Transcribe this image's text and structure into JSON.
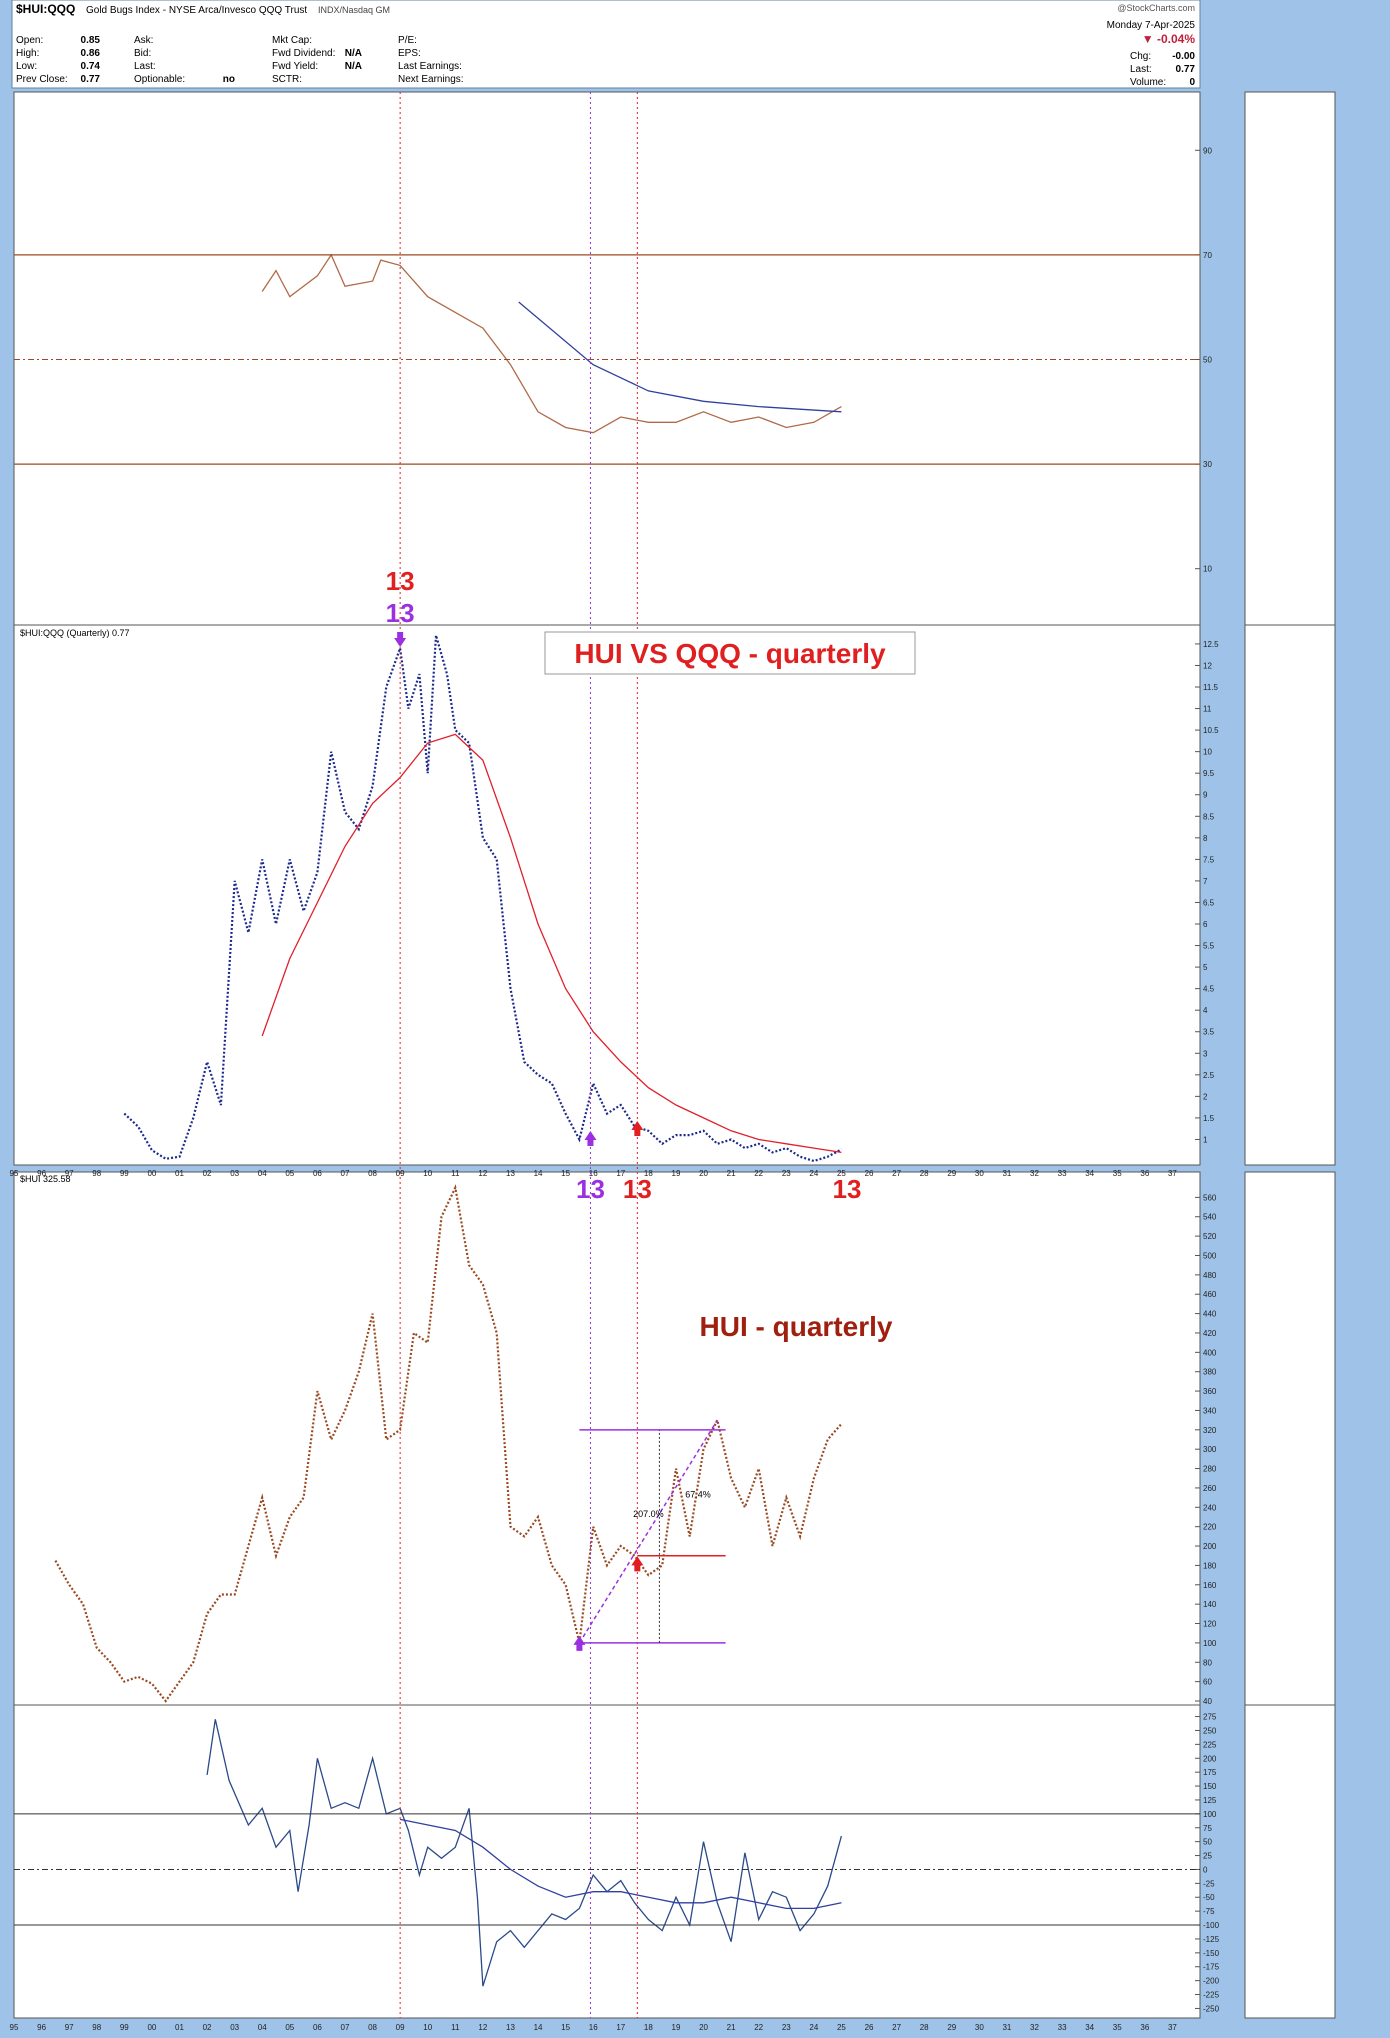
{
  "header": {
    "symbol": "$HUI:QQQ",
    "description": "Gold Bugs Index - NYSE Arca/Invesco QQQ Trust",
    "exchange": "INDX/Nasdaq GM",
    "watermark": "@StockCharts.com",
    "date": "Monday  7-Apr-2025",
    "change_pct": "▼ -0.04%",
    "left_labels": [
      "Open:",
      "High:",
      "Low:",
      "Prev Close:"
    ],
    "left_values": [
      "0.85",
      "0.86",
      "0.74",
      "0.77"
    ],
    "mid_labels": [
      "Ask:",
      "Bid:",
      "Last:",
      "Optionable:"
    ],
    "mid_values": [
      "",
      "",
      "",
      "no"
    ],
    "mid2_labels": [
      "Mkt Cap:",
      "Fwd Dividend:",
      "Fwd Yield:",
      "SCTR:"
    ],
    "mid2_values": [
      "",
      "N/A",
      "N/A",
      ""
    ],
    "mid3_labels": [
      "P/E:",
      "EPS:",
      "Last Earnings:",
      "Next Earnings:"
    ],
    "right_labels": [
      "Chg:",
      "Last:",
      "Volume:"
    ],
    "right_values": [
      "-0.00",
      "0.77",
      "0"
    ]
  },
  "colors": {
    "background": "#9fc3e8",
    "panel": "#ffffff",
    "ratio_line": "#1c2a8c",
    "ratio_ma": "#e0202a",
    "hui_line": "#9a4a22",
    "rsi_line": "#b06a48",
    "rsi_ma": "#3040a0",
    "osc_line": "#2a4a8a",
    "osc_pos_fill": "#5a8fd8",
    "osc_neg_fill": "#f07a9a",
    "marker_red": "#e02020",
    "marker_purple": "#9a30e0"
  },
  "annotations": {
    "ratio_title": "HUI VS QQQ - quarterly",
    "hui_title": "HUI - quarterly",
    "ratio_legend": "$HUI:QQQ (Quarterly) 0.77",
    "hui_legend": "$HUI 325.58",
    "count_13": "13",
    "pct_1": "67.4%",
    "pct_2": "207.0%"
  },
  "chart_data": [
    {
      "type": "line",
      "panel": "RSI",
      "series": [
        {
          "values": [
            [
              2004,
              63
            ],
            [
              2004.5,
              67
            ],
            [
              2005,
              62
            ],
            [
              2006,
              66
            ],
            [
              2006.5,
              70
            ],
            [
              2007,
              64
            ],
            [
              2008,
              65
            ],
            [
              2008.3,
              69
            ],
            [
              2009,
              68
            ],
            [
              2010,
              62
            ],
            [
              2011,
              59
            ],
            [
              2012,
              56
            ],
            [
              2013,
              49
            ],
            [
              2014,
              40
            ],
            [
              2015,
              37
            ],
            [
              2016,
              36
            ],
            [
              2017,
              39
            ],
            [
              2018,
              38
            ],
            [
              2019,
              38
            ],
            [
              2020,
              40
            ],
            [
              2021,
              38
            ],
            [
              2022,
              39
            ],
            [
              2023,
              37
            ],
            [
              2024,
              38
            ],
            [
              2025,
              41
            ]
          ]
        },
        {
          "values": [
            [
              2013.3,
              61
            ],
            [
              2016,
              49
            ],
            [
              2018,
              44
            ],
            [
              2020,
              42
            ],
            [
              2022,
              41
            ],
            [
              2025,
              40
            ]
          ]
        }
      ],
      "ylim": [
        0,
        100
      ],
      "y_ticks": [
        10,
        30,
        50,
        70,
        90
      ]
    },
    {
      "type": "line",
      "panel": "HUI:QQQ ratio",
      "series": [
        {
          "values": [
            [
              1999,
              1.6
            ],
            [
              1999.5,
              1.3
            ],
            [
              2000,
              0.75
            ],
            [
              2000.5,
              0.55
            ],
            [
              2001,
              0.6
            ],
            [
              2001.5,
              1.5
            ],
            [
              2002,
              2.8
            ],
            [
              2002.5,
              1.8
            ],
            [
              2003,
              7.0
            ],
            [
              2003.5,
              5.8
            ],
            [
              2004,
              7.5
            ],
            [
              2004.5,
              6.0
            ],
            [
              2005,
              7.5
            ],
            [
              2005.5,
              6.3
            ],
            [
              2006,
              7.2
            ],
            [
              2006.5,
              10.0
            ],
            [
              2007,
              8.6
            ],
            [
              2007.5,
              8.2
            ],
            [
              2008,
              9.2
            ],
            [
              2008.5,
              11.5
            ],
            [
              2009,
              12.4
            ],
            [
              2009.3,
              11.0
            ],
            [
              2009.7,
              11.8
            ],
            [
              2010,
              9.5
            ],
            [
              2010.3,
              12.7
            ],
            [
              2010.7,
              11.8
            ],
            [
              2011,
              10.5
            ],
            [
              2011.5,
              10.2
            ],
            [
              2012,
              8.0
            ],
            [
              2012.5,
              7.5
            ],
            [
              2013,
              4.5
            ],
            [
              2013.5,
              2.8
            ],
            [
              2014,
              2.5
            ],
            [
              2014.5,
              2.3
            ],
            [
              2015,
              1.6
            ],
            [
              2015.5,
              1.0
            ],
            [
              2016,
              2.3
            ],
            [
              2016.5,
              1.6
            ],
            [
              2017,
              1.8
            ],
            [
              2017.5,
              1.3
            ],
            [
              2018,
              1.2
            ],
            [
              2018.5,
              0.9
            ],
            [
              2019,
              1.1
            ],
            [
              2019.5,
              1.1
            ],
            [
              2020,
              1.2
            ],
            [
              2020.5,
              0.9
            ],
            [
              2021,
              1.0
            ],
            [
              2021.5,
              0.8
            ],
            [
              2022,
              0.9
            ],
            [
              2022.5,
              0.7
            ],
            [
              2023,
              0.8
            ],
            [
              2023.5,
              0.6
            ],
            [
              2024,
              0.5
            ],
            [
              2024.5,
              0.6
            ],
            [
              2025,
              0.77
            ]
          ]
        },
        {
          "values": [
            [
              2004,
              3.4
            ],
            [
              2005,
              5.2
            ],
            [
              2006,
              6.5
            ],
            [
              2007,
              7.8
            ],
            [
              2008,
              8.8
            ],
            [
              2009,
              9.4
            ],
            [
              2010,
              10.2
            ],
            [
              2011,
              10.4
            ],
            [
              2012,
              9.8
            ],
            [
              2013,
              8.0
            ],
            [
              2014,
              6.0
            ],
            [
              2015,
              4.5
            ],
            [
              2016,
              3.5
            ],
            [
              2017,
              2.8
            ],
            [
              2018,
              2.2
            ],
            [
              2019,
              1.8
            ],
            [
              2020,
              1.5
            ],
            [
              2021,
              1.2
            ],
            [
              2022,
              1.0
            ],
            [
              2023,
              0.9
            ],
            [
              2024,
              0.8
            ],
            [
              2025,
              0.7
            ]
          ]
        }
      ],
      "ylim": [
        0.5,
        12.8
      ],
      "y_ticks": [
        1.0,
        1.5,
        2.0,
        2.5,
        3.0,
        3.5,
        4.0,
        4.5,
        5.0,
        5.5,
        6.0,
        6.5,
        7.0,
        7.5,
        8.0,
        8.5,
        9.0,
        9.5,
        10.0,
        10.5,
        11.0,
        11.5,
        12.0,
        12.5
      ],
      "x_ticks": [
        "95",
        "96",
        "97",
        "98",
        "99",
        "00",
        "01",
        "02",
        "03",
        "04",
        "05",
        "06",
        "07",
        "08",
        "09",
        "10",
        "11",
        "12",
        "13",
        "14",
        "15",
        "16",
        "17",
        "18",
        "19",
        "20",
        "21",
        "22",
        "23",
        "24",
        "25",
        "26",
        "27",
        "28",
        "29",
        "30",
        "31",
        "32",
        "33",
        "34",
        "35",
        "36",
        "37"
      ]
    },
    {
      "type": "line",
      "panel": "HUI",
      "series": [
        {
          "values": [
            [
              1996.5,
              185
            ],
            [
              1997,
              160
            ],
            [
              1997.5,
              140
            ],
            [
              1998,
              95
            ],
            [
              1998.5,
              80
            ],
            [
              1999,
              60
            ],
            [
              1999.5,
              65
            ],
            [
              2000,
              58
            ],
            [
              2000.5,
              40
            ],
            [
              2001,
              60
            ],
            [
              2001.5,
              80
            ],
            [
              2002,
              130
            ],
            [
              2002.5,
              150
            ],
            [
              2003,
              150
            ],
            [
              2003.5,
              200
            ],
            [
              2004,
              250
            ],
            [
              2004.5,
              190
            ],
            [
              2005,
              230
            ],
            [
              2005.5,
              250
            ],
            [
              2006,
              360
            ],
            [
              2006.5,
              310
            ],
            [
              2007,
              340
            ],
            [
              2007.5,
              380
            ],
            [
              2008,
              440
            ],
            [
              2008.5,
              310
            ],
            [
              2009,
              320
            ],
            [
              2009.5,
              420
            ],
            [
              2010,
              410
            ],
            [
              2010.5,
              540
            ],
            [
              2011,
              570
            ],
            [
              2011.5,
              490
            ],
            [
              2012,
              470
            ],
            [
              2012.5,
              420
            ],
            [
              2013,
              220
            ],
            [
              2013.5,
              210
            ],
            [
              2014,
              230
            ],
            [
              2014.5,
              180
            ],
            [
              2015,
              160
            ],
            [
              2015.5,
              100
            ],
            [
              2016,
              220
            ],
            [
              2016.5,
              180
            ],
            [
              2017,
              200
            ],
            [
              2017.5,
              190
            ],
            [
              2018,
              170
            ],
            [
              2018.5,
              180
            ],
            [
              2019,
              280
            ],
            [
              2019.5,
              210
            ],
            [
              2020,
              300
            ],
            [
              2020.5,
              330
            ],
            [
              2021,
              270
            ],
            [
              2021.5,
              240
            ],
            [
              2022,
              280
            ],
            [
              2022.5,
              200
            ],
            [
              2023,
              250
            ],
            [
              2023.5,
              210
            ],
            [
              2024,
              270
            ],
            [
              2024.5,
              310
            ],
            [
              2025,
              326
            ]
          ]
        }
      ],
      "ylim": [
        40,
        580
      ],
      "y_ticks": [
        40,
        60,
        80,
        100,
        120,
        140,
        160,
        180,
        200,
        220,
        240,
        260,
        280,
        300,
        320,
        340,
        360,
        380,
        400,
        420,
        440,
        460,
        480,
        500,
        520,
        540,
        560
      ]
    },
    {
      "type": "line",
      "panel": "Oscillator",
      "series": [
        {
          "values": [
            [
              2002,
              170
            ],
            [
              2002.3,
              270
            ],
            [
              2002.8,
              160
            ],
            [
              2003.5,
              80
            ],
            [
              2004,
              110
            ],
            [
              2004.5,
              40
            ],
            [
              2005,
              70
            ],
            [
              2005.3,
              -40
            ],
            [
              2005.7,
              80
            ],
            [
              2006,
              200
            ],
            [
              2006.5,
              110
            ],
            [
              2007,
              120
            ],
            [
              2007.5,
              110
            ],
            [
              2008,
              200
            ],
            [
              2008.5,
              100
            ],
            [
              2009,
              110
            ],
            [
              2009.3,
              70
            ],
            [
              2009.7,
              -10
            ],
            [
              2010,
              40
            ],
            [
              2010.5,
              20
            ],
            [
              2011,
              40
            ],
            [
              2011.5,
              110
            ],
            [
              2011.8,
              -50
            ],
            [
              2012,
              -210
            ],
            [
              2012.5,
              -130
            ],
            [
              2013,
              -110
            ],
            [
              2013.5,
              -140
            ],
            [
              2014,
              -110
            ],
            [
              2014.5,
              -80
            ],
            [
              2015,
              -90
            ],
            [
              2015.5,
              -70
            ],
            [
              2016,
              -10
            ],
            [
              2016.5,
              -40
            ],
            [
              2017,
              -20
            ],
            [
              2017.5,
              -60
            ],
            [
              2018,
              -90
            ],
            [
              2018.5,
              -110
            ],
            [
              2019,
              -50
            ],
            [
              2019.5,
              -100
            ],
            [
              2020,
              50
            ],
            [
              2020.5,
              -60
            ],
            [
              2021,
              -130
            ],
            [
              2021.5,
              30
            ],
            [
              2022,
              -90
            ],
            [
              2022.5,
              -40
            ],
            [
              2023,
              -50
            ],
            [
              2023.5,
              -110
            ],
            [
              2024,
              -80
            ],
            [
              2024.5,
              -30
            ],
            [
              2025,
              60
            ]
          ]
        },
        {
          "values": [
            [
              2009,
              90
            ],
            [
              2011,
              70
            ],
            [
              2012,
              40
            ],
            [
              2013,
              0
            ],
            [
              2014,
              -30
            ],
            [
              2015,
              -50
            ],
            [
              2016,
              -40
            ],
            [
              2017,
              -40
            ],
            [
              2018,
              -50
            ],
            [
              2019,
              -60
            ],
            [
              2020,
              -60
            ],
            [
              2021,
              -50
            ],
            [
              2022,
              -60
            ],
            [
              2023,
              -70
            ],
            [
              2024,
              -70
            ],
            [
              2025,
              -60
            ]
          ]
        }
      ],
      "ylim": [
        -260,
        285
      ],
      "y_ticks": [
        -250,
        -225,
        -200,
        -175,
        -150,
        -125,
        -100,
        -75,
        -50,
        -25,
        0,
        25,
        50,
        75,
        100,
        125,
        150,
        175,
        200,
        225,
        250,
        275
      ]
    }
  ]
}
